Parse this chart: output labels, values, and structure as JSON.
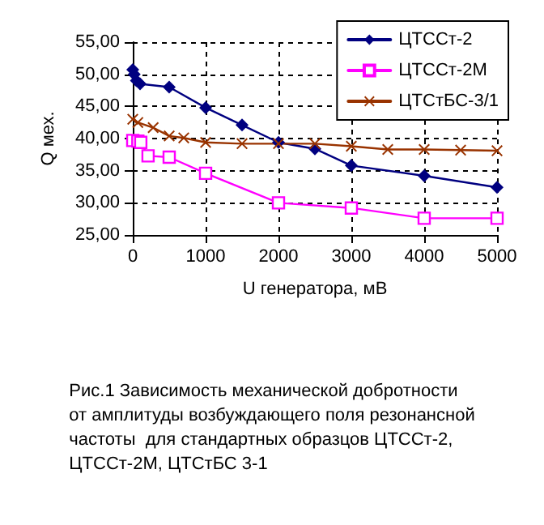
{
  "chart_data": {
    "type": "line",
    "xlabel": "U генератора, мВ",
    "ylabel": "Q мех.",
    "xlim": [
      0,
      5000
    ],
    "xticks": [
      0,
      1000,
      2000,
      3000,
      4000,
      5000
    ],
    "ylim": [
      25,
      55
    ],
    "yticks": [
      {
        "value": 25,
        "label": "25,00"
      },
      {
        "value": 30,
        "label": "30,00"
      },
      {
        "value": 35,
        "label": "35,00"
      },
      {
        "value": 40,
        "label": "40,00"
      },
      {
        "value": 45,
        "label": "45,00"
      },
      {
        "value": 50,
        "label": "50,00"
      },
      {
        "value": 55,
        "label": "55,00"
      }
    ],
    "grid": true,
    "legend": "top right",
    "line_style": "solid",
    "annotations": [
      "Рис.1 Зависимость механической добротности\nот амплитуды возбуждающего поля резонансной\nчастоты  для стандартных образцов ЦТССт-2,\nЦТССт-2М, ЦТСтБС 3-1"
    ],
    "series": [
      {
        "name": "ЦТССт-2",
        "color": "#000080",
        "marker": "diamond",
        "x": [
          0,
          20,
          50,
          100,
          500,
          1000,
          1500,
          2000,
          2500,
          3000,
          4000,
          5000
        ],
        "values": [
          50.7,
          50.0,
          49.0,
          48.5,
          48.0,
          44.8,
          42.1,
          39.4,
          38.4,
          35.8,
          34.2,
          32.4
        ]
      },
      {
        "name": "ЦТССт-2М",
        "color": "#ff00ff",
        "marker": "square",
        "x": [
          0,
          70,
          110,
          210,
          500,
          1000,
          2000,
          3000,
          4000,
          5000
        ],
        "values": [
          39.7,
          39.6,
          39.4,
          37.3,
          37.1,
          34.6,
          30.0,
          29.2,
          27.6,
          27.6
        ]
      },
      {
        "name": "ЦТСтБС-3/1",
        "color": "#993300",
        "marker": "cross",
        "x": [
          0,
          70,
          280,
          500,
          700,
          1000,
          1500,
          2000,
          2500,
          3000,
          3500,
          4000,
          4500,
          5000
        ],
        "values": [
          43.0,
          42.5,
          41.7,
          40.4,
          40.1,
          39.4,
          39.2,
          39.2,
          39.2,
          38.8,
          38.3,
          38.3,
          38.2,
          38.1
        ]
      }
    ]
  }
}
